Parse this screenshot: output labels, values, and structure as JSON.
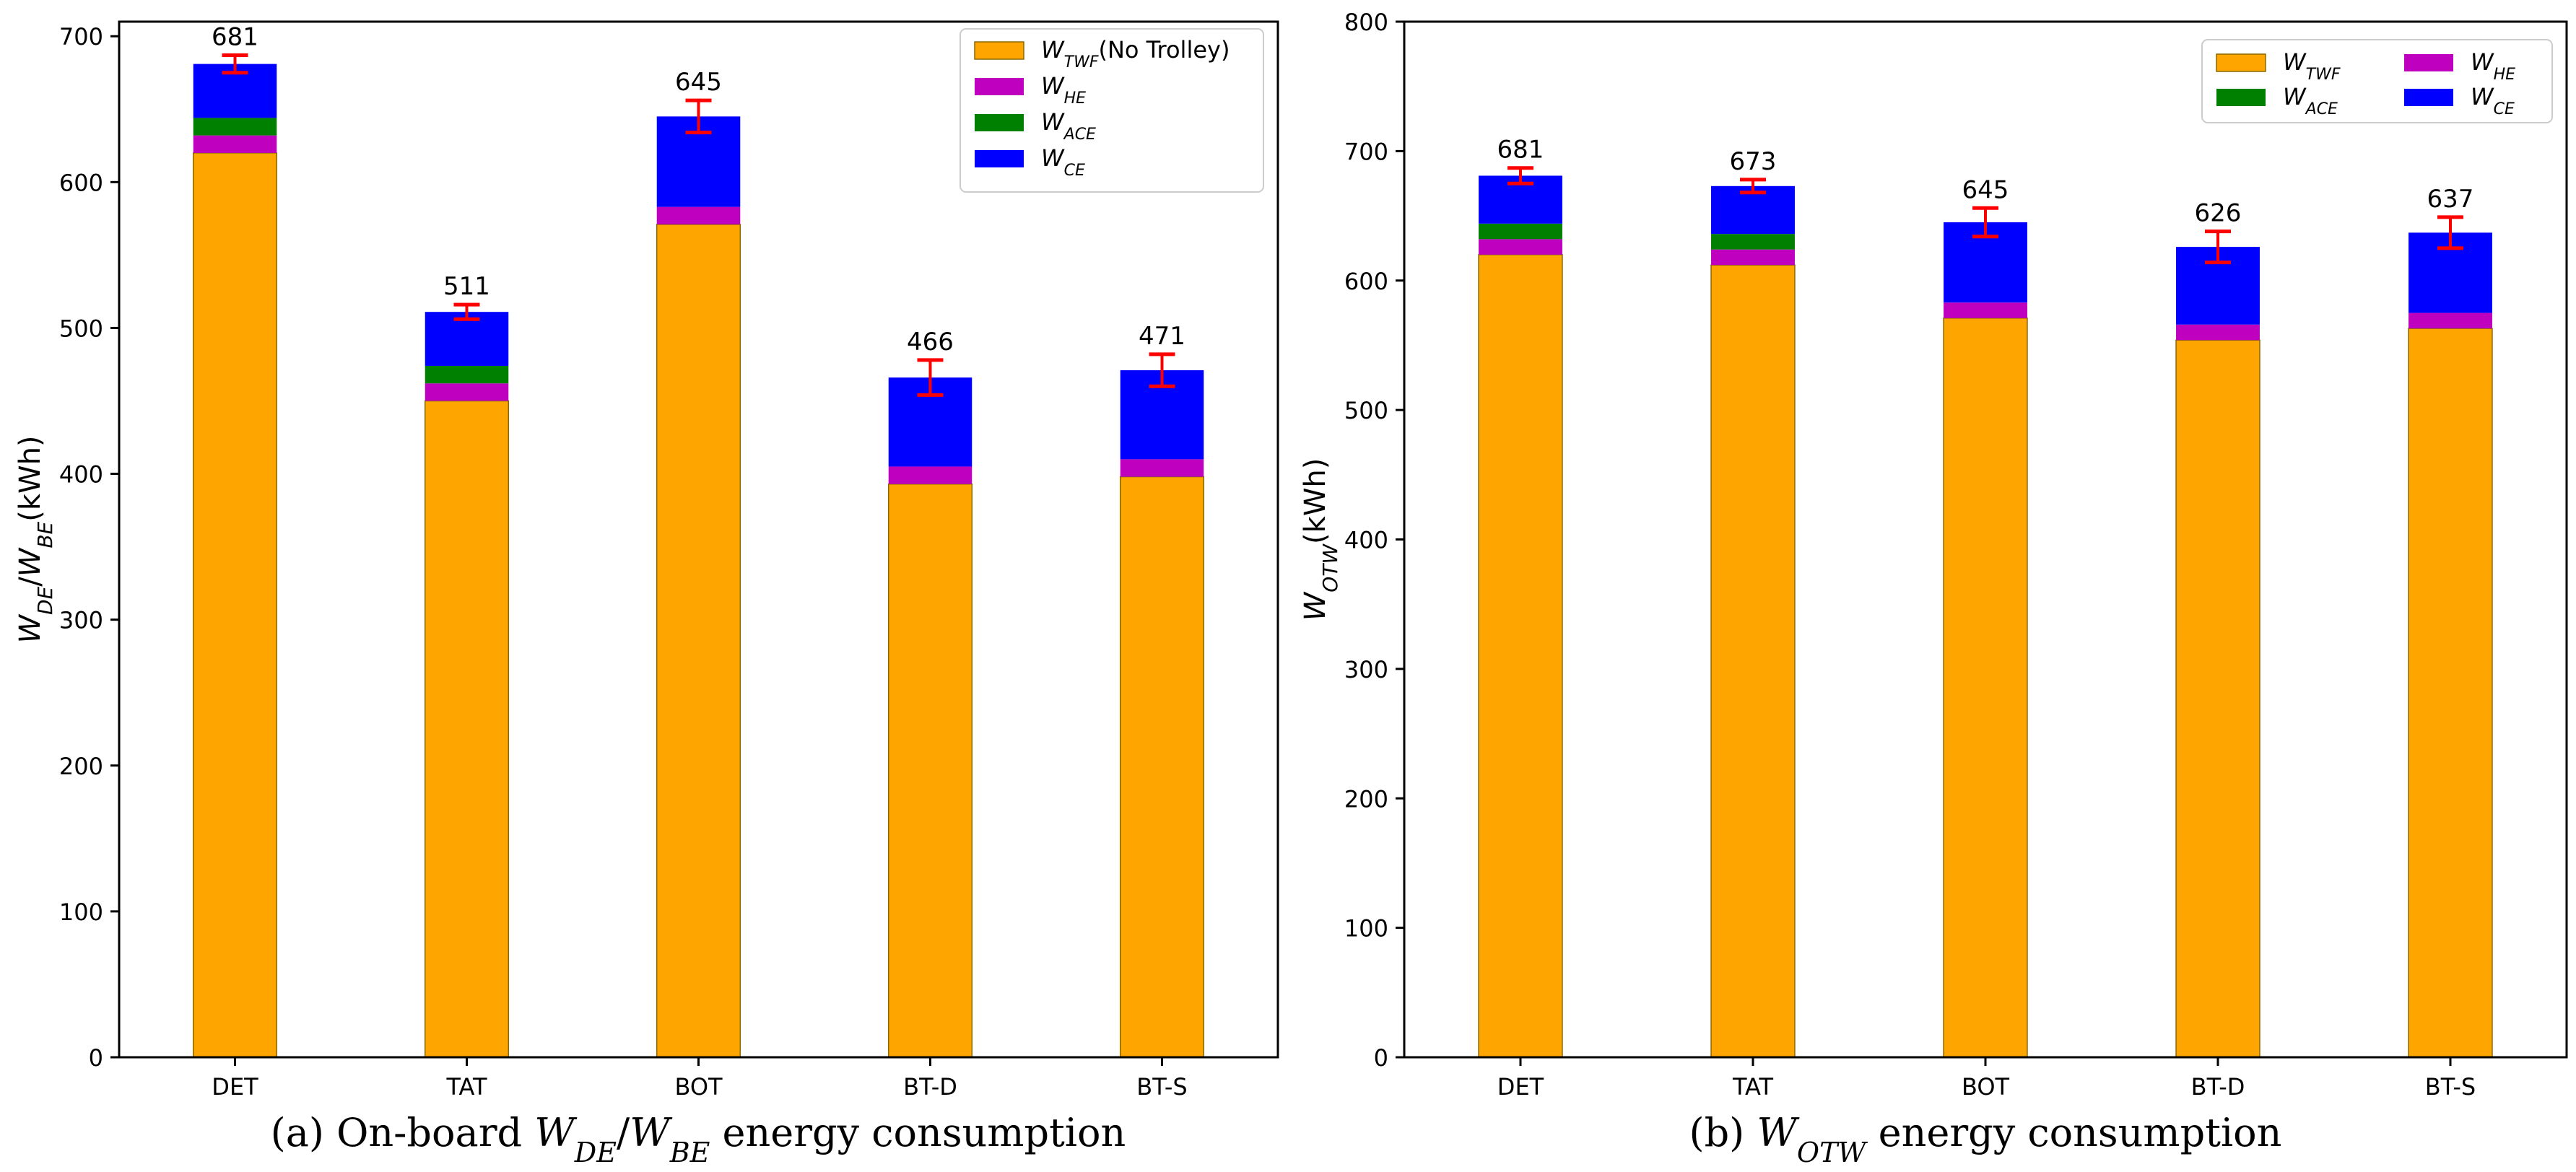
{
  "chart_data": [
    {
      "type": "bar",
      "stacked": true,
      "categories": [
        "DET",
        "TAT",
        "BOT",
        "BT-D",
        "BT-S"
      ],
      "ylabel": "W_DE/W_BE(kWh)",
      "ylim": [
        0,
        710
      ],
      "yticks": [
        0,
        100,
        200,
        300,
        400,
        500,
        600,
        700
      ],
      "series": [
        {
          "name": "W_TWF(No Trolley)",
          "color": "#FFA500",
          "values": [
            620,
            450,
            571,
            393,
            398
          ]
        },
        {
          "name": "W_HE",
          "color": "#BF00BF",
          "values": [
            12,
            12,
            12,
            12,
            12
          ]
        },
        {
          "name": "W_ACE",
          "color": "#008000",
          "values": [
            12,
            12,
            0,
            0,
            0
          ]
        },
        {
          "name": "W_CE",
          "color": "#0000FF",
          "values": [
            37,
            37,
            62,
            61,
            61
          ]
        }
      ],
      "totals": [
        681,
        511,
        645,
        466,
        471
      ],
      "errors": [
        6,
        5,
        11,
        12,
        11
      ],
      "legend_position": "top-right",
      "caption": {
        "prefix": "(a) On-board ",
        "suffix": " energy consumption"
      }
    },
    {
      "type": "bar",
      "stacked": true,
      "categories": [
        "DET",
        "TAT",
        "BOT",
        "BT-D",
        "BT-S"
      ],
      "ylabel": "W_OTW(kWh)",
      "ylim": [
        0,
        800
      ],
      "yticks": [
        0,
        100,
        200,
        300,
        400,
        500,
        600,
        700,
        800
      ],
      "series": [
        {
          "name": "W_TWF",
          "color": "#FFA500",
          "values": [
            620,
            612,
            571,
            554,
            563
          ]
        },
        {
          "name": "W_HE",
          "color": "#BF00BF",
          "values": [
            12,
            12,
            12,
            12,
            12
          ]
        },
        {
          "name": "W_ACE",
          "color": "#008000",
          "values": [
            12,
            12,
            0,
            0,
            0
          ]
        },
        {
          "name": "W_CE",
          "color": "#0000FF",
          "values": [
            37,
            37,
            62,
            60,
            62
          ]
        }
      ],
      "totals": [
        681,
        673,
        645,
        626,
        637
      ],
      "errors": [
        6,
        5,
        11,
        12,
        12
      ],
      "legend_position": "top-right",
      "caption": {
        "prefix": "(b) ",
        "suffix": " energy consumption"
      }
    }
  ],
  "colors": {
    "error_bar": "#FF0000",
    "axis": "#000000",
    "bar_edge": "#8a6a00"
  }
}
